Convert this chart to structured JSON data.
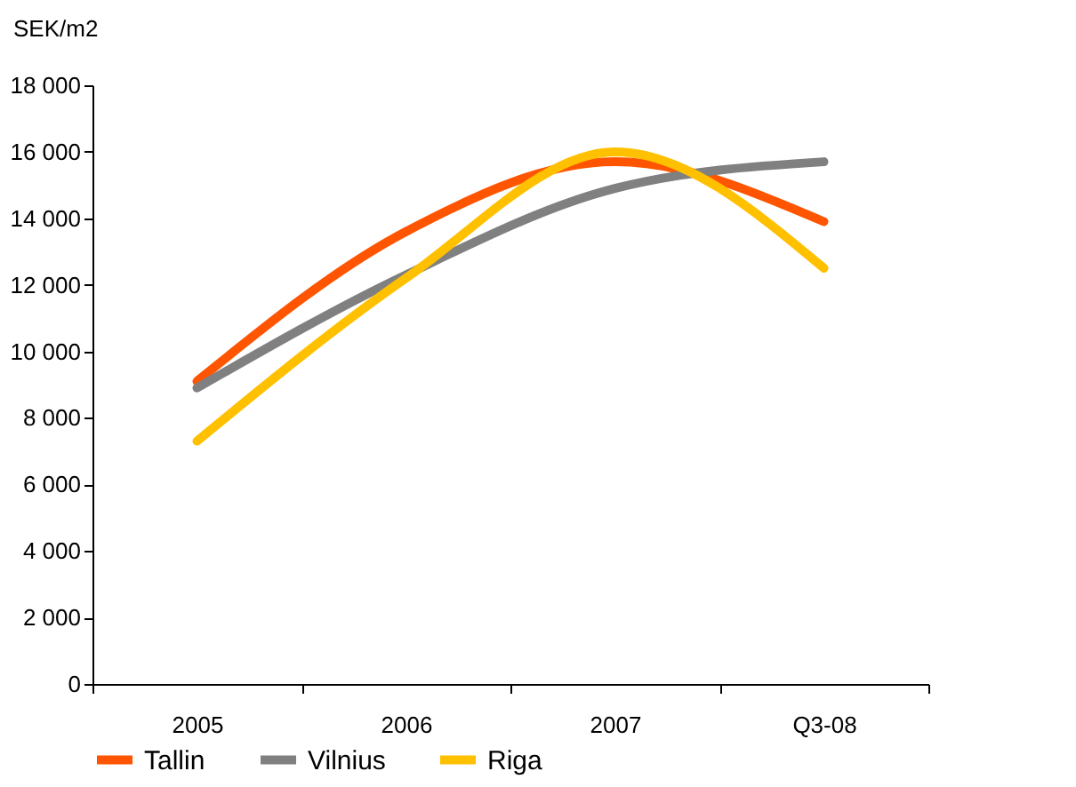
{
  "chart_data": {
    "type": "line",
    "ylabel": "SEK/m2",
    "categories": [
      "2005",
      "2006",
      "2007",
      "Q3-08"
    ],
    "series": [
      {
        "name": "Tallin",
        "color": "#ff5500",
        "values": [
          9100,
          13600,
          15700,
          13900
        ]
      },
      {
        "name": "Vilnius",
        "color": "#808080",
        "values": [
          8900,
          12300,
          14900,
          15700
        ]
      },
      {
        "name": "Riga",
        "color": "#ffc000",
        "values": [
          7300,
          12200,
          16000,
          12500
        ]
      }
    ],
    "ylim": [
      0,
      18000
    ],
    "yticks": [
      {
        "value": 0,
        "label": "0"
      },
      {
        "value": 2000,
        "label": "2 000"
      },
      {
        "value": 4000,
        "label": "4 000"
      },
      {
        "value": 6000,
        "label": "6 000"
      },
      {
        "value": 8000,
        "label": "8 000"
      },
      {
        "value": 10000,
        "label": "10 000"
      },
      {
        "value": 12000,
        "label": "12 000"
      },
      {
        "value": 14000,
        "label": "14 000"
      },
      {
        "value": 16000,
        "label": "16 000"
      },
      {
        "value": 18000,
        "label": "18 000"
      }
    ],
    "grid": false,
    "legend": "bottom",
    "marker": "none",
    "line_style": "solid"
  }
}
